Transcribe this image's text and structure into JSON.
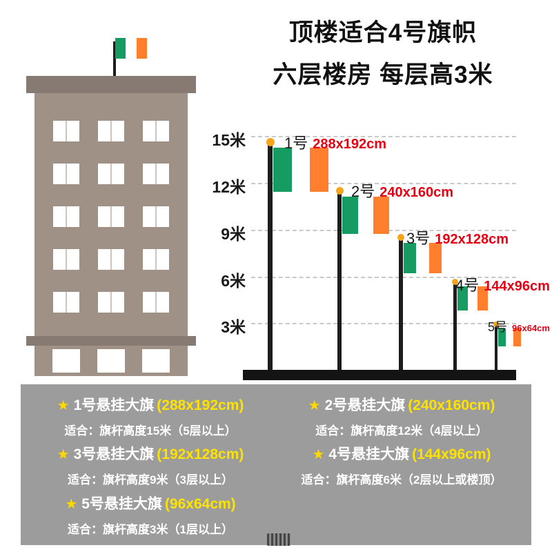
{
  "title": {
    "line1": "顶楼适合4号旗帜",
    "line2": "六层楼房 每层高3米"
  },
  "scale_labels": [
    "15米",
    "12米",
    "9米",
    "6米",
    "3米"
  ],
  "poles": [
    {
      "label": "1号",
      "size": "288x192cm",
      "height_m": 15
    },
    {
      "label": "2号",
      "size": "240x160cm",
      "height_m": 12
    },
    {
      "label": "3号",
      "size": "192x128cm",
      "height_m": 9
    },
    {
      "label": "4号",
      "size": "144x96cm",
      "height_m": 6
    },
    {
      "label": "5号",
      "size": "96x64cm",
      "height_m": 3
    }
  ],
  "legend_panel": {
    "star_icon": "★",
    "items": [
      {
        "name": "1号悬挂大旗",
        "size": "(288x192cm)",
        "desc": "适合：旗杆高度15米（5层以上）"
      },
      {
        "name": "2号悬挂大旗",
        "size": "(240x160cm)",
        "desc": "适合：旗杆高度12米（4层以上）"
      },
      {
        "name": "3号悬挂大旗",
        "size": "(192x128cm)",
        "desc": "适合：旗杆高度9米（3层以上）"
      },
      {
        "name": "4号悬挂大旗",
        "size": "(144x96cm)",
        "desc": "适合：旗杆高度6米（2层以上或楼顶）"
      },
      {
        "name": "5号悬挂大旗",
        "size": "(96x64cm)",
        "desc": "适合：旗杆高度3米（1层以上）"
      }
    ]
  },
  "colors": {
    "flag_green": "#169b62",
    "flag_white": "#ffffff",
    "flag_orange": "#ff7f2e",
    "size_text_red": "#e60012",
    "legend_background": "#9c9c9c",
    "star_yellow": "#ffd800",
    "size_yellow": "#ffe300",
    "building_body": "#a09187",
    "building_trim": "#867a72",
    "pole_black": "#1d1d1d",
    "finial_orange": "#f7a41d"
  }
}
